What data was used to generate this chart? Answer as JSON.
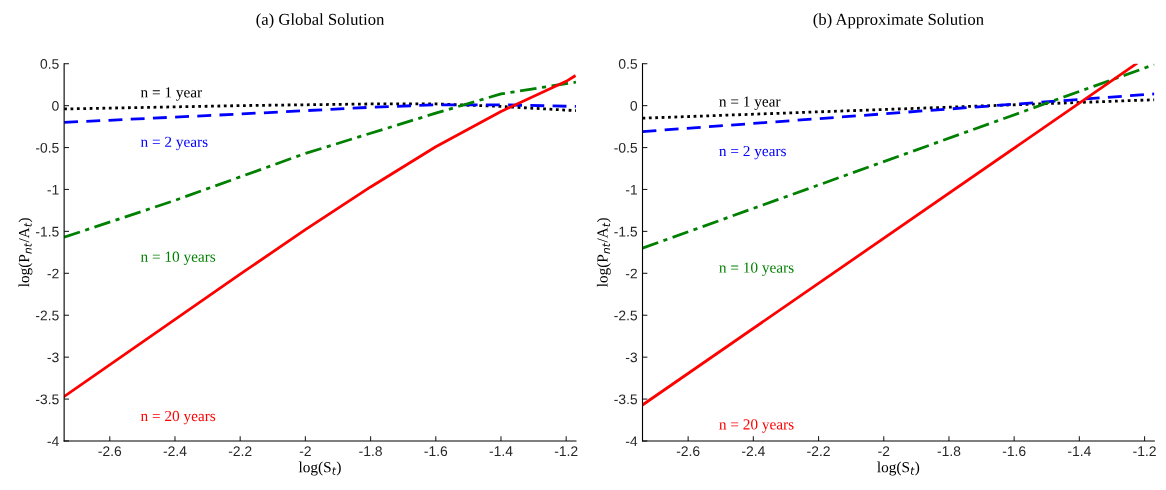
{
  "chart_data": [
    {
      "type": "line",
      "title": "(a) Global Solution",
      "xlabel": "log(S$_{t}$)",
      "ylabel": "log(P$_{nt}$/A$_{t}$)",
      "xlim": [
        -2.74,
        -1.17
      ],
      "ylim": [
        -4,
        0.5
      ],
      "xticks": [
        -2.6,
        -2.4,
        -2.2,
        -2,
        -1.8,
        -1.6,
        -1.4,
        -1.2
      ],
      "yticks": [
        -4,
        -3.5,
        -3,
        -2.5,
        -2,
        -1.5,
        -1,
        -0.5,
        0,
        0.5
      ],
      "grid": false,
      "legend": false,
      "series": [
        {
          "name": "n = 1 year",
          "color": "#000000",
          "line_style": "dotted",
          "x": [
            -2.74,
            -2.2,
            -1.8,
            -1.6,
            -1.4,
            -1.17
          ],
          "values": [
            -0.04,
            0.0,
            0.02,
            0.02,
            -0.01,
            -0.06
          ]
        },
        {
          "name": "n = 2 years",
          "color": "#0000ff",
          "line_style": "dashed",
          "x": [
            -2.74,
            -2.2,
            -1.8,
            -1.6,
            -1.4,
            -1.17
          ],
          "values": [
            -0.2,
            -0.1,
            -0.02,
            0.01,
            0.01,
            -0.01
          ]
        },
        {
          "name": "n = 10 years",
          "color": "#008000",
          "line_style": "dashdot",
          "x": [
            -2.74,
            -2.4,
            -2.0,
            -1.6,
            -1.4,
            -1.17
          ],
          "values": [
            -1.57,
            -1.13,
            -0.57,
            -0.09,
            0.14,
            0.28
          ]
        },
        {
          "name": "n = 20 years",
          "color": "#ff0000",
          "line_style": "solid",
          "x": [
            -2.74,
            -2.2,
            -2.0,
            -1.8,
            -1.6,
            -1.4,
            -1.2,
            -1.175
          ],
          "values": [
            -3.47,
            -2.01,
            -1.48,
            -0.97,
            -0.49,
            -0.07,
            0.29,
            0.35
          ]
        }
      ]
    },
    {
      "type": "line",
      "title": "(b) Approximate Solution",
      "xlabel": "log(S$_{t}$)",
      "ylabel": "log(P$_{nt}$/A$_{t}$)",
      "xlim": [
        -2.74,
        -1.17
      ],
      "ylim": [
        -4,
        0.5
      ],
      "xticks": [
        -2.6,
        -2.4,
        -2.2,
        -2,
        -1.8,
        -1.6,
        -1.4,
        -1.2
      ],
      "yticks": [
        -4,
        -3.5,
        -3,
        -2.5,
        -2,
        -1.5,
        -1,
        -0.5,
        0,
        0.5
      ],
      "grid": false,
      "legend": false,
      "series": [
        {
          "name": "n = 1 year",
          "color": "#000000",
          "line_style": "dotted",
          "x": [
            -2.74,
            -1.17
          ],
          "values": [
            -0.15,
            0.07
          ]
        },
        {
          "name": "n = 2 years",
          "color": "#0000ff",
          "line_style": "dashed",
          "x": [
            -2.74,
            -1.17
          ],
          "values": [
            -0.31,
            0.14
          ]
        },
        {
          "name": "n = 10 years",
          "color": "#008000",
          "line_style": "dashdot",
          "x": [
            -2.74,
            -1.17
          ],
          "values": [
            -1.7,
            0.49
          ]
        },
        {
          "name": "n = 20 years",
          "color": "#ff0000",
          "line_style": "solid",
          "x": [
            -2.74,
            -1.225
          ],
          "values": [
            -3.57,
            0.5
          ]
        }
      ]
    }
  ]
}
